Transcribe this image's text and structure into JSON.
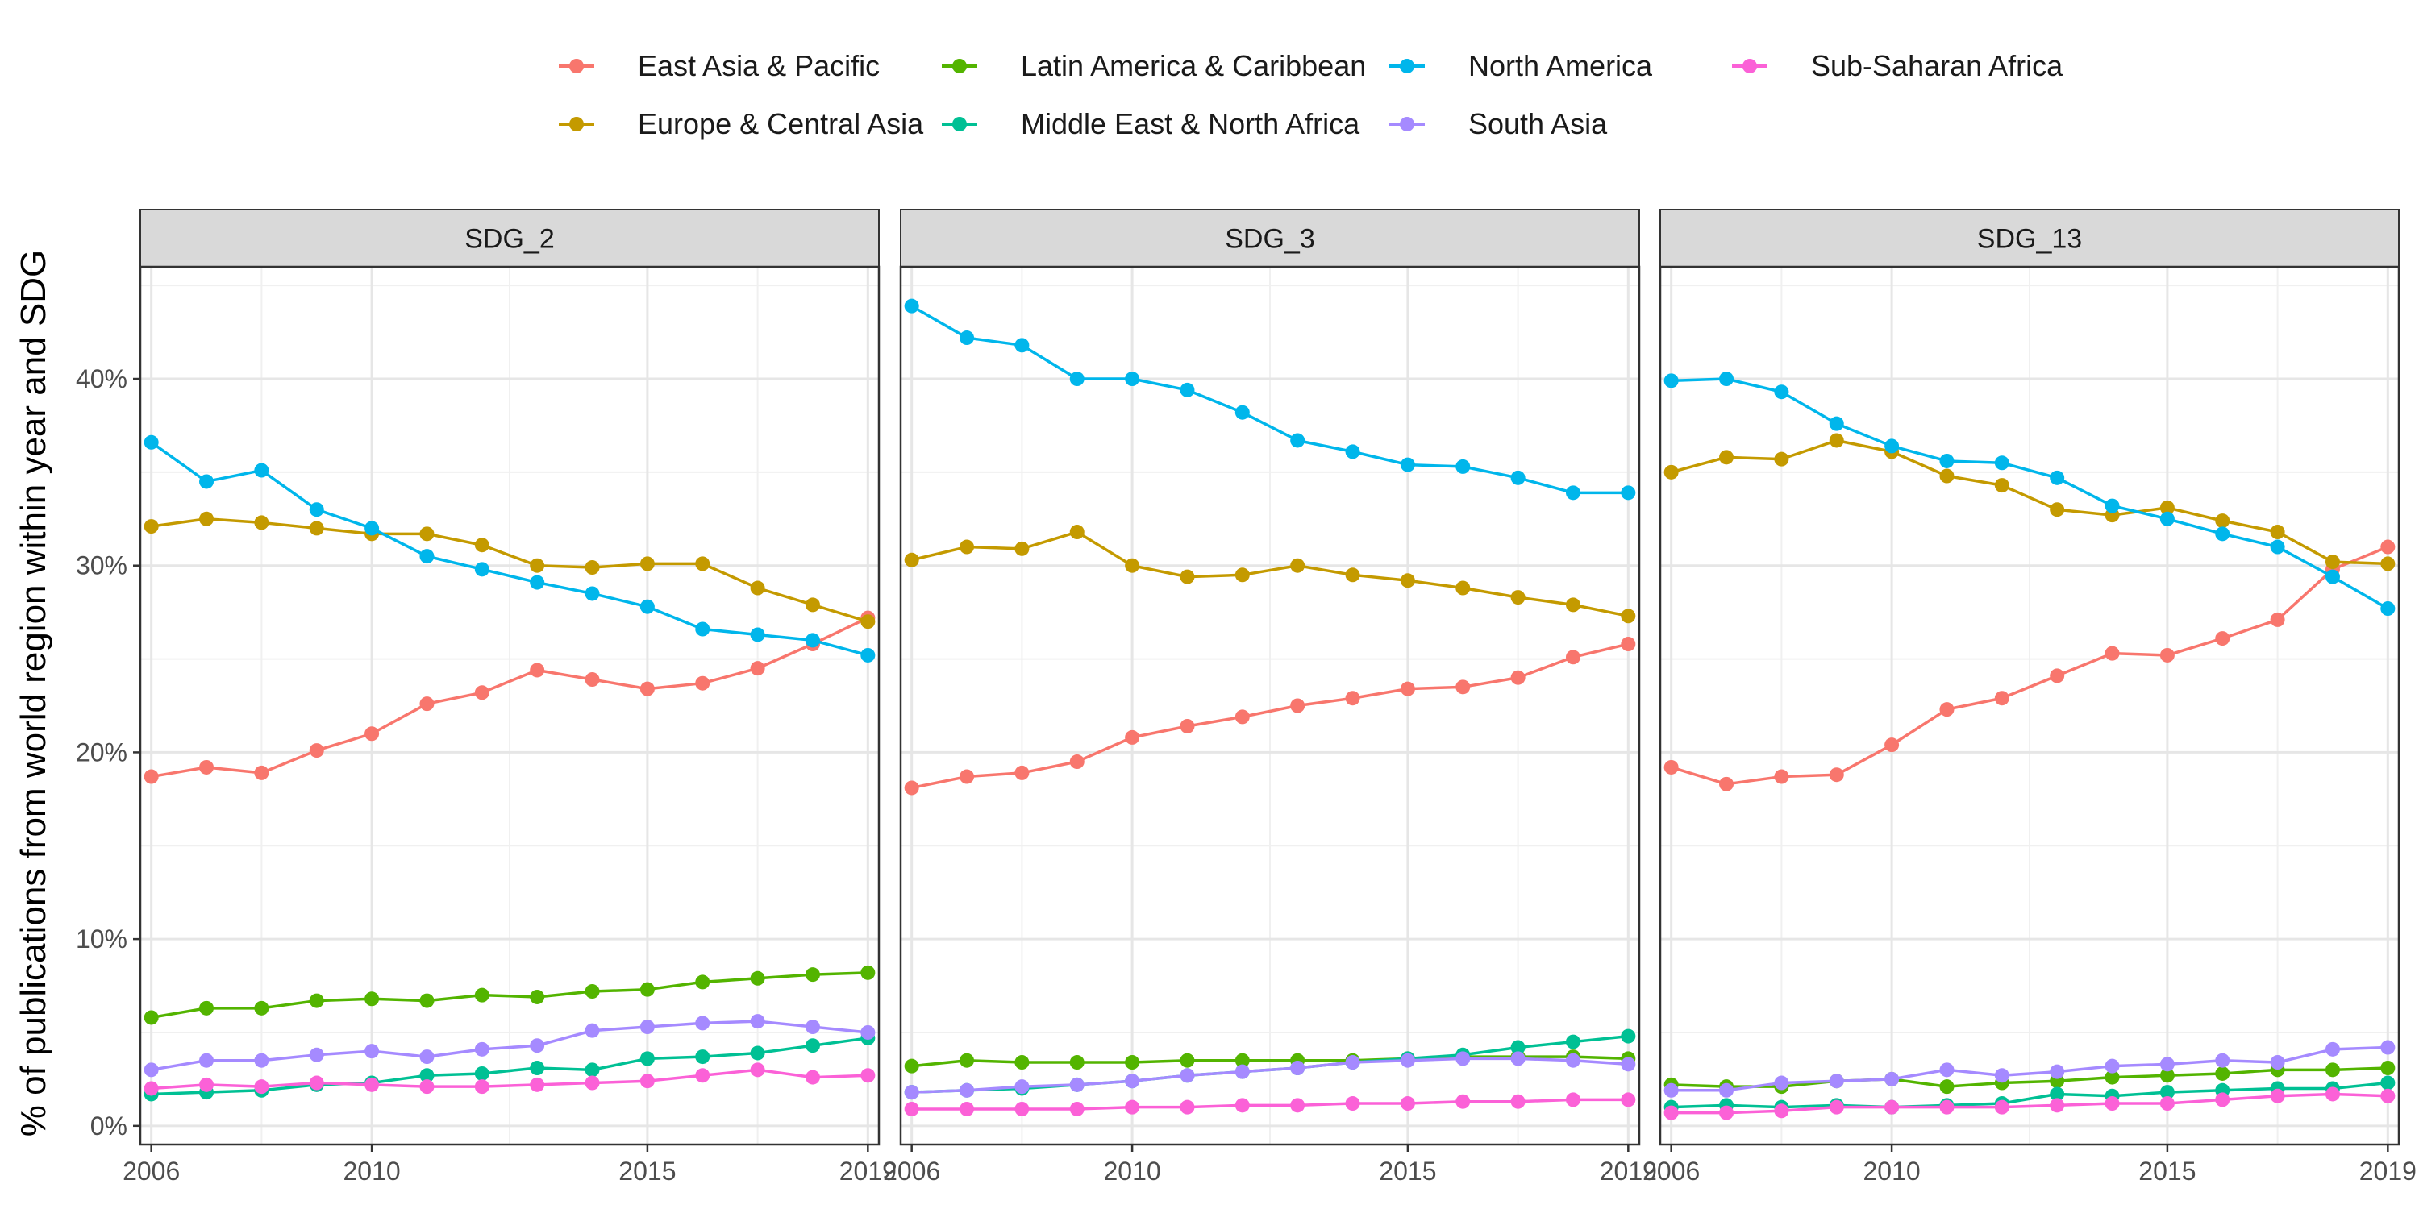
{
  "chart_data": {
    "type": "line",
    "ylabel": "% of publications from world region within year and SDG",
    "xlabel": "",
    "x": [
      2006,
      2007,
      2008,
      2009,
      2010,
      2011,
      2012,
      2013,
      2014,
      2015,
      2016,
      2017,
      2018,
      2019
    ],
    "xticks": [
      "2006",
      "2010",
      "2015",
      "2019"
    ],
    "xlim": [
      2005.8,
      2019.2
    ],
    "ylim": [
      -0.01,
      0.46
    ],
    "yticks": [
      "0%",
      "10%",
      "20%",
      "30%",
      "40%"
    ],
    "ytick_values": [
      0,
      0.1,
      0.2,
      0.3,
      0.4
    ],
    "grid": true,
    "legend_position": "top",
    "legend": [
      {
        "name": "East Asia & Pacific",
        "color": "#F8766D"
      },
      {
        "name": "Europe & Central Asia",
        "color": "#C49A00"
      },
      {
        "name": "Latin America & Caribbean",
        "color": "#53B400"
      },
      {
        "name": "Middle East & North Africa",
        "color": "#00C094"
      },
      {
        "name": "North America",
        "color": "#00B6EB"
      },
      {
        "name": "South Asia",
        "color": "#A58AFF"
      },
      {
        "name": "Sub-Saharan Africa",
        "color": "#FB61D7"
      }
    ],
    "panels": [
      {
        "title": "SDG_2",
        "series": [
          {
            "name": "East Asia & Pacific",
            "values": [
              0.187,
              0.192,
              0.189,
              0.201,
              0.21,
              0.226,
              0.232,
              0.244,
              0.239,
              0.234,
              0.237,
              0.245,
              0.258,
              0.272
            ]
          },
          {
            "name": "Europe & Central Asia",
            "values": [
              0.321,
              0.325,
              0.323,
              0.32,
              0.317,
              0.317,
              0.311,
              0.3,
              0.299,
              0.301,
              0.301,
              0.288,
              0.279,
              0.27
            ]
          },
          {
            "name": "Latin America & Caribbean",
            "values": [
              0.058,
              0.063,
              0.063,
              0.067,
              0.068,
              0.067,
              0.07,
              0.069,
              0.072,
              0.073,
              0.077,
              0.079,
              0.081,
              0.082
            ]
          },
          {
            "name": "Middle East & North Africa",
            "values": [
              0.017,
              0.018,
              0.019,
              0.022,
              0.023,
              0.027,
              0.028,
              0.031,
              0.03,
              0.036,
              0.037,
              0.039,
              0.043,
              0.047
            ]
          },
          {
            "name": "North America",
            "values": [
              0.366,
              0.345,
              0.351,
              0.33,
              0.32,
              0.305,
              0.298,
              0.291,
              0.285,
              0.278,
              0.266,
              0.263,
              0.26,
              0.252
            ]
          },
          {
            "name": "South Asia",
            "values": [
              0.03,
              0.035,
              0.035,
              0.038,
              0.04,
              0.037,
              0.041,
              0.043,
              0.051,
              0.053,
              0.055,
              0.056,
              0.053,
              0.05
            ]
          },
          {
            "name": "Sub-Saharan Africa",
            "values": [
              0.02,
              0.022,
              0.021,
              0.023,
              0.022,
              0.021,
              0.021,
              0.022,
              0.023,
              0.024,
              0.027,
              0.03,
              0.026,
              0.027
            ]
          }
        ]
      },
      {
        "title": "SDG_3",
        "series": [
          {
            "name": "East Asia & Pacific",
            "values": [
              0.181,
              0.187,
              0.189,
              0.195,
              0.208,
              0.214,
              0.219,
              0.225,
              0.229,
              0.234,
              0.235,
              0.24,
              0.251,
              0.258
            ]
          },
          {
            "name": "Europe & Central Asia",
            "values": [
              0.303,
              0.31,
              0.309,
              0.318,
              0.3,
              0.294,
              0.295,
              0.3,
              0.295,
              0.292,
              0.288,
              0.283,
              0.279,
              0.273
            ]
          },
          {
            "name": "Latin America & Caribbean",
            "values": [
              0.032,
              0.035,
              0.034,
              0.034,
              0.034,
              0.035,
              0.035,
              0.035,
              0.035,
              0.036,
              0.037,
              0.037,
              0.037,
              0.036
            ]
          },
          {
            "name": "Middle East & North Africa",
            "values": [
              0.018,
              0.019,
              0.02,
              0.022,
              0.024,
              0.027,
              0.029,
              0.031,
              0.034,
              0.036,
              0.038,
              0.042,
              0.045,
              0.048
            ]
          },
          {
            "name": "North America",
            "values": [
              0.439,
              0.422,
              0.418,
              0.4,
              0.4,
              0.394,
              0.382,
              0.367,
              0.361,
              0.354,
              0.353,
              0.347,
              0.339,
              0.339
            ]
          },
          {
            "name": "South Asia",
            "values": [
              0.018,
              0.019,
              0.021,
              0.022,
              0.024,
              0.027,
              0.029,
              0.031,
              0.034,
              0.035,
              0.036,
              0.036,
              0.035,
              0.033
            ]
          },
          {
            "name": "Sub-Saharan Africa",
            "values": [
              0.009,
              0.009,
              0.009,
              0.009,
              0.01,
              0.01,
              0.011,
              0.011,
              0.012,
              0.012,
              0.013,
              0.013,
              0.014,
              0.014
            ]
          }
        ]
      },
      {
        "title": "SDG_13",
        "series": [
          {
            "name": "East Asia & Pacific",
            "values": [
              0.192,
              0.183,
              0.187,
              0.188,
              0.204,
              0.223,
              0.229,
              0.241,
              0.253,
              0.252,
              0.261,
              0.271,
              0.298,
              0.31
            ]
          },
          {
            "name": "Europe & Central Asia",
            "values": [
              0.35,
              0.358,
              0.357,
              0.367,
              0.361,
              0.348,
              0.343,
              0.33,
              0.327,
              0.331,
              0.324,
              0.318,
              0.302,
              0.301
            ]
          },
          {
            "name": "Latin America & Caribbean",
            "values": [
              0.022,
              0.021,
              0.021,
              0.024,
              0.025,
              0.021,
              0.023,
              0.024,
              0.026,
              0.027,
              0.028,
              0.03,
              0.03,
              0.031
            ]
          },
          {
            "name": "Middle East & North Africa",
            "values": [
              0.01,
              0.011,
              0.01,
              0.011,
              0.01,
              0.011,
              0.012,
              0.017,
              0.016,
              0.018,
              0.019,
              0.02,
              0.02,
              0.023
            ]
          },
          {
            "name": "North America",
            "values": [
              0.399,
              0.4,
              0.393,
              0.376,
              0.364,
              0.356,
              0.355,
              0.347,
              0.332,
              0.325,
              0.317,
              0.31,
              0.294,
              0.277
            ]
          },
          {
            "name": "South Asia",
            "values": [
              0.019,
              0.019,
              0.023,
              0.024,
              0.025,
              0.03,
              0.027,
              0.029,
              0.032,
              0.033,
              0.035,
              0.034,
              0.041,
              0.042
            ]
          },
          {
            "name": "Sub-Saharan Africa",
            "values": [
              0.007,
              0.007,
              0.008,
              0.01,
              0.01,
              0.01,
              0.01,
              0.011,
              0.012,
              0.012,
              0.014,
              0.016,
              0.017,
              0.016
            ]
          }
        ]
      }
    ]
  }
}
